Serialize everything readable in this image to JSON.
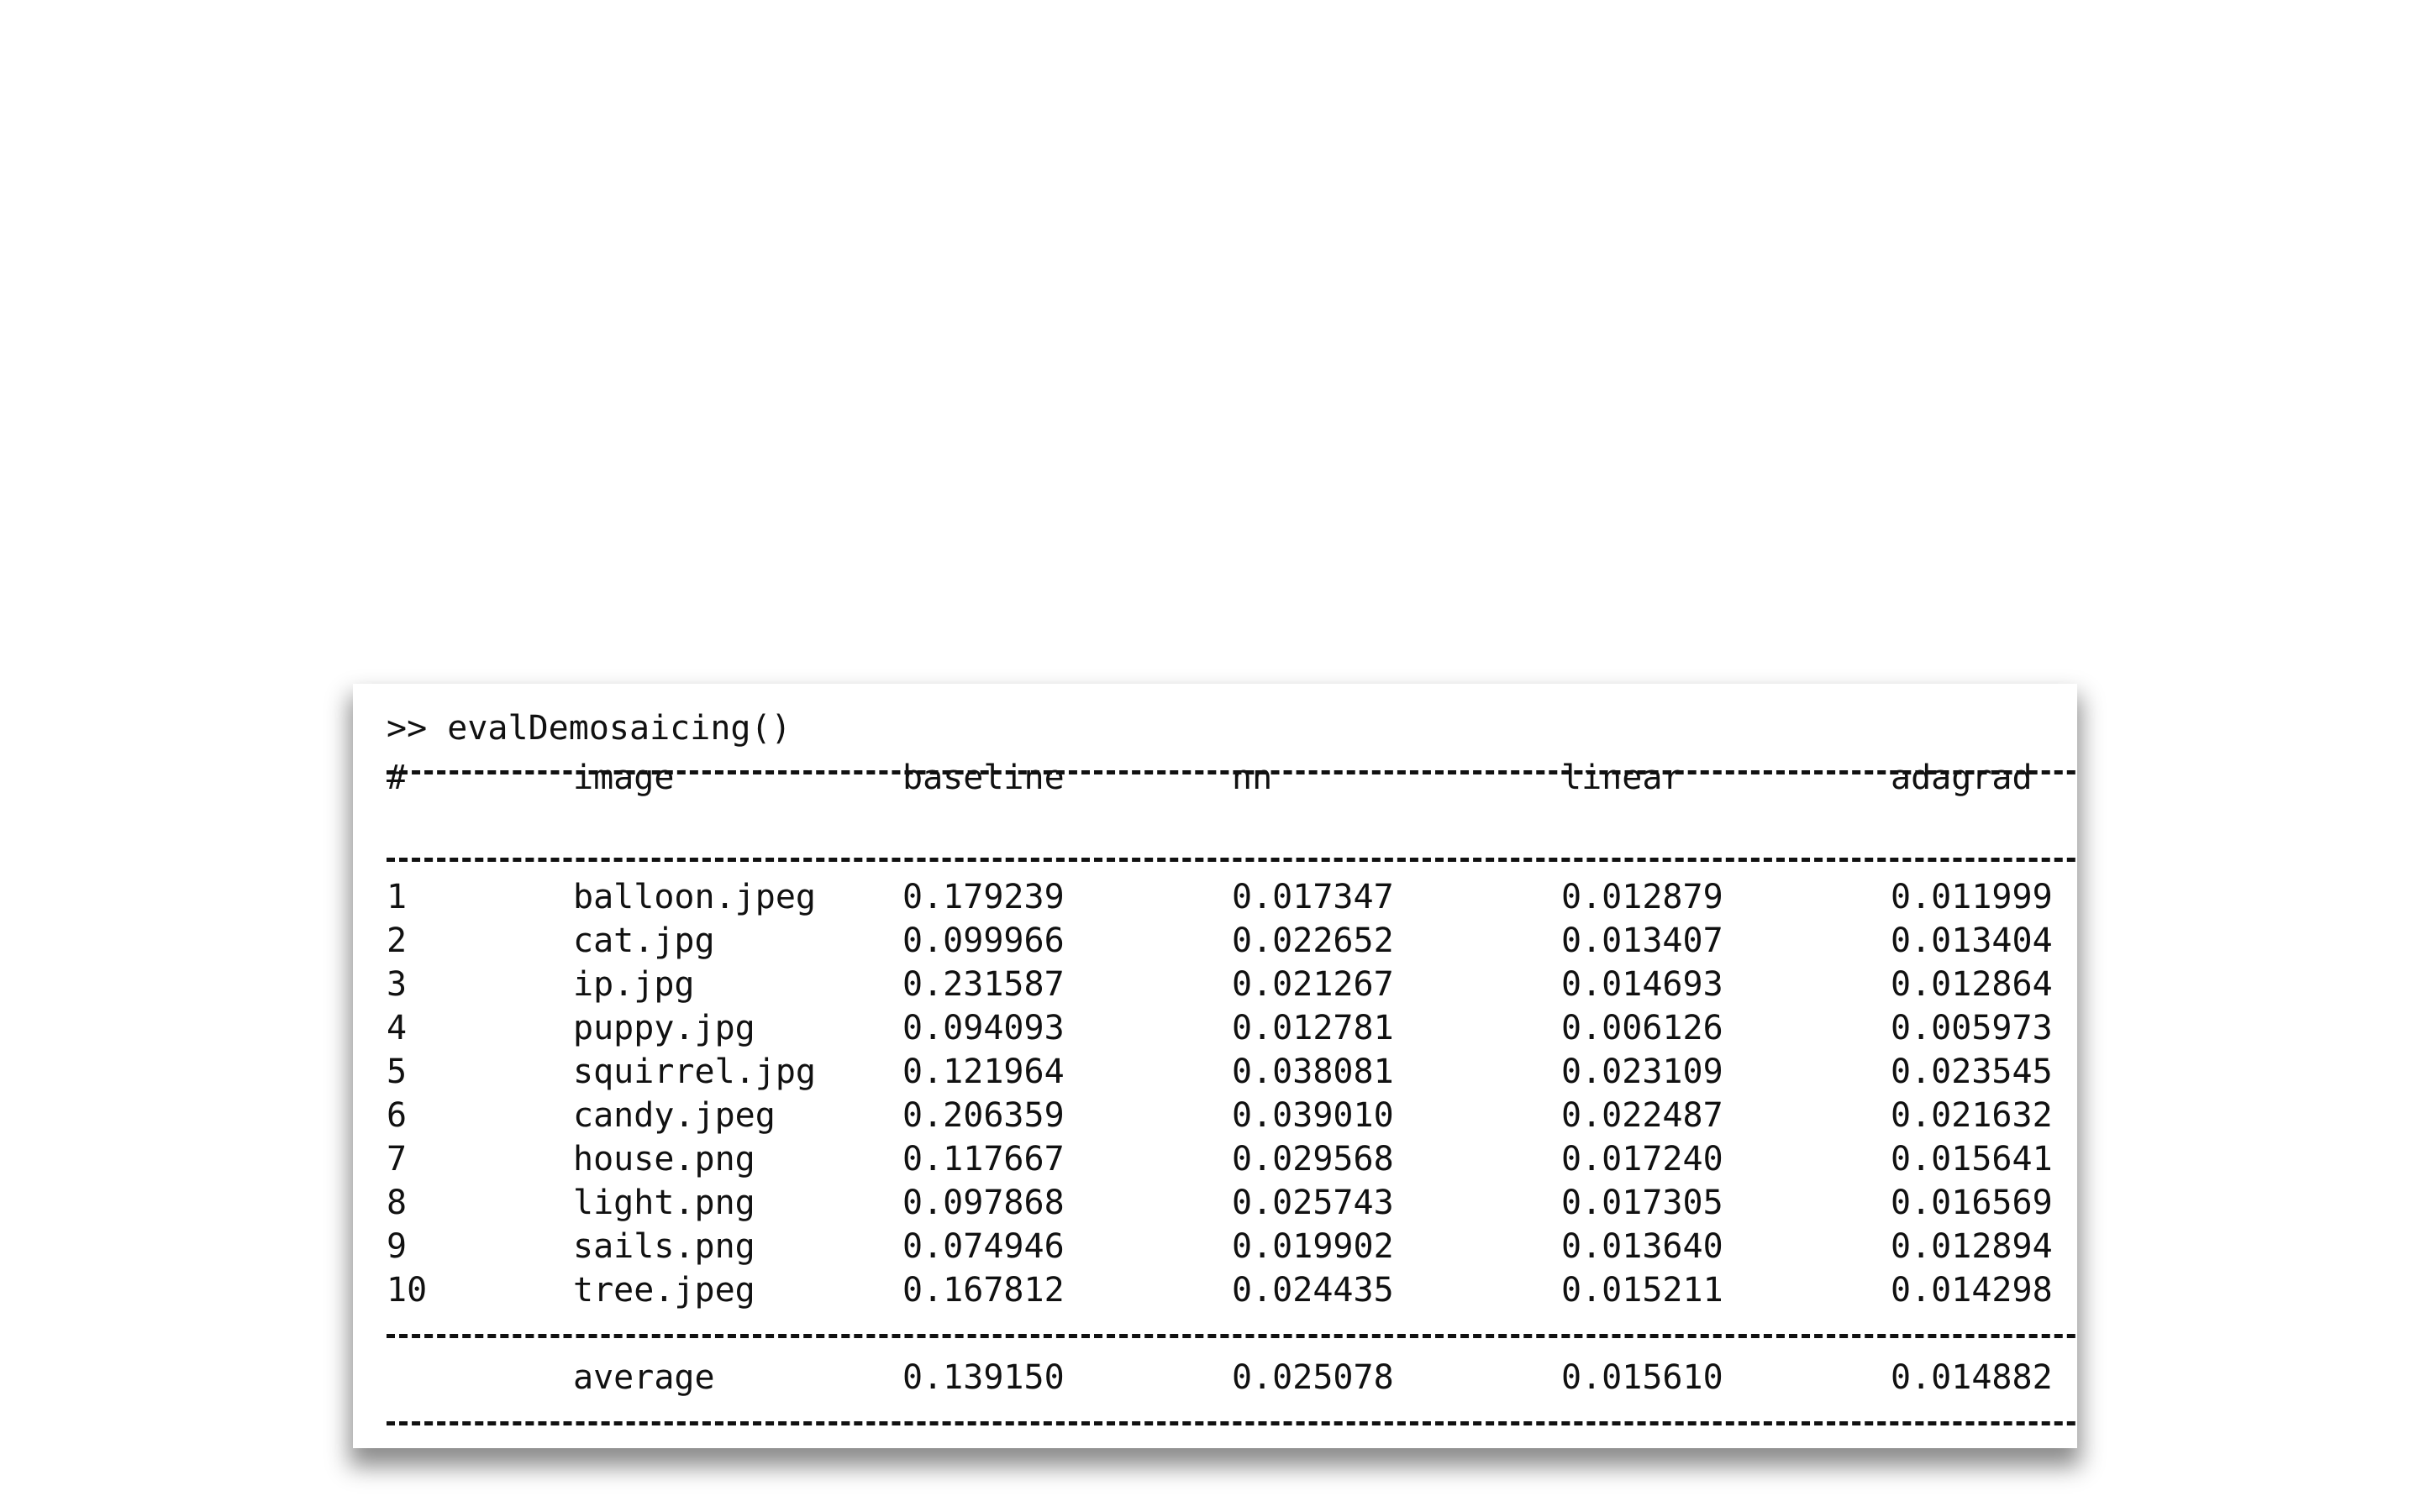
{
  "console": {
    "prompt": ">> evalDemosaicing()"
  },
  "table": {
    "headers": [
      "#",
      "image",
      "baseline",
      "nn",
      "linear",
      "adagrad"
    ],
    "rows": [
      [
        "1",
        "balloon.jpeg",
        "0.179239",
        "0.017347",
        "0.012879",
        "0.011999"
      ],
      [
        "2",
        "cat.jpg",
        "0.099966",
        "0.022652",
        "0.013407",
        "0.013404"
      ],
      [
        "3",
        "ip.jpg",
        "0.231587",
        "0.021267",
        "0.014693",
        "0.012864"
      ],
      [
        "4",
        "puppy.jpg",
        "0.094093",
        "0.012781",
        "0.006126",
        "0.005973"
      ],
      [
        "5",
        "squirrel.jpg",
        "0.121964",
        "0.038081",
        "0.023109",
        "0.023545"
      ],
      [
        "6",
        "candy.jpeg",
        "0.206359",
        "0.039010",
        "0.022487",
        "0.021632"
      ],
      [
        "7",
        "house.png",
        "0.117667",
        "0.029568",
        "0.017240",
        "0.015641"
      ],
      [
        "8",
        "light.png",
        "0.097868",
        "0.025743",
        "0.017305",
        "0.016569"
      ],
      [
        "9",
        "sails.png",
        "0.074946",
        "0.019902",
        "0.013640",
        "0.012894"
      ],
      [
        "10",
        "tree.jpeg",
        "0.167812",
        "0.024435",
        "0.015211",
        "0.014298"
      ]
    ],
    "footer": [
      "",
      "average",
      "0.139150",
      "0.025078",
      "0.015610",
      "0.014882"
    ]
  }
}
